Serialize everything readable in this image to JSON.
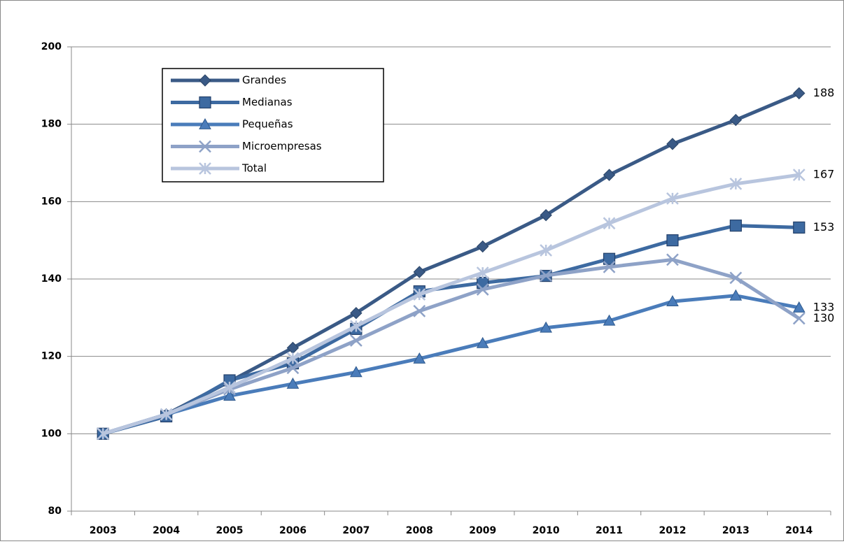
{
  "chart_data": {
    "type": "line",
    "categories": [
      "2003",
      "2004",
      "2005",
      "2006",
      "2007",
      "2008",
      "2009",
      "2010",
      "2011",
      "2012",
      "2013",
      "2014"
    ],
    "series": [
      {
        "name": "Grandes",
        "color": "#3a5a86",
        "marker": "diamond",
        "values": [
          100,
          105,
          113.5,
          122.2,
          131.2,
          141.8,
          148.4,
          156.5,
          166.9,
          174.9,
          181.1,
          188
        ],
        "value_labels": [
          null,
          null,
          null,
          null,
          null,
          null,
          null,
          null,
          null,
          null,
          null,
          "188"
        ]
      },
      {
        "name": "Medianas",
        "color": "#3d6aa1",
        "marker": "square",
        "values": [
          100,
          104.5,
          113.8,
          118.2,
          127.1,
          136.8,
          139,
          140.8,
          145.2,
          150,
          153.8,
          153.3
        ],
        "value_labels": [
          null,
          null,
          null,
          null,
          null,
          null,
          null,
          null,
          null,
          null,
          null,
          "153"
        ]
      },
      {
        "name": "Pequeñas",
        "color": "#4a7cba",
        "marker": "triangle",
        "values": [
          100,
          105,
          109.8,
          112.9,
          115.9,
          119.4,
          123.4,
          127.4,
          129.2,
          134.2,
          135.7,
          132.6
        ],
        "value_labels": [
          null,
          null,
          null,
          null,
          null,
          null,
          null,
          null,
          null,
          null,
          null,
          "133"
        ]
      },
      {
        "name": "Microempresas",
        "color": "#8ea2c7",
        "marker": "x",
        "values": [
          100,
          105,
          111.5,
          117,
          124.1,
          131.7,
          137.3,
          140.9,
          143.1,
          145,
          140.3,
          129.8
        ],
        "value_labels": [
          null,
          null,
          null,
          null,
          null,
          null,
          null,
          null,
          null,
          null,
          null,
          "130"
        ]
      },
      {
        "name": "Total",
        "color": "#b8c5de",
        "marker": "star",
        "values": [
          100,
          105,
          112,
          119.5,
          127.8,
          136,
          141.6,
          147.4,
          154.4,
          160.8,
          164.6,
          166.9
        ],
        "value_labels": [
          null,
          null,
          null,
          null,
          null,
          null,
          null,
          null,
          null,
          null,
          null,
          "167"
        ]
      }
    ],
    "ylim": [
      80,
      200
    ],
    "yticks": [
      80,
      100,
      120,
      140,
      160,
      180,
      200
    ],
    "grid": true,
    "legend": "upper left"
  }
}
